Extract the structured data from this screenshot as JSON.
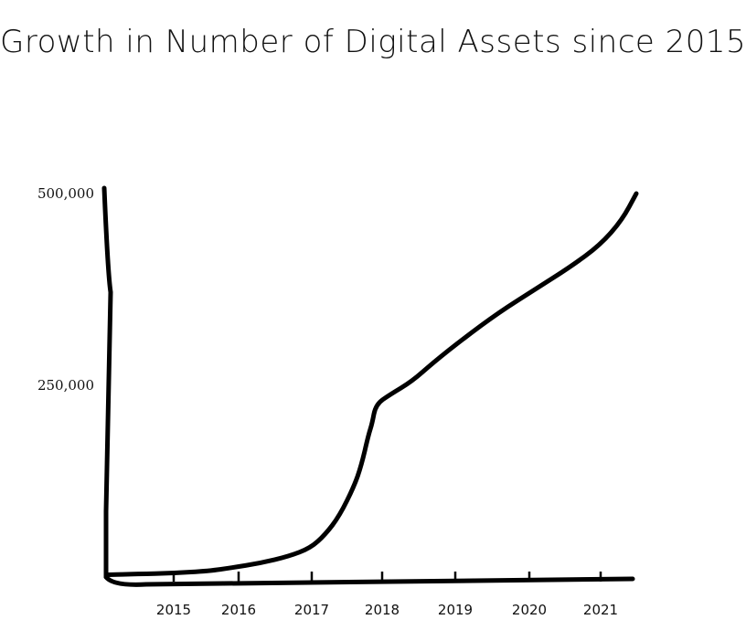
{
  "chart_data": {
    "type": "line",
    "title": "Growth in Number of Digital Assets since 2015",
    "xlabel": "",
    "ylabel": "",
    "x_ticks": [
      "2015",
      "2016",
      "2017",
      "2018",
      "2019",
      "2020",
      "2021"
    ],
    "y_ticks": [
      "500,000",
      "250,000"
    ],
    "ylim": [
      0,
      500000
    ],
    "xlim": [
      2014.1,
      2021.4
    ],
    "grid": false,
    "series": [
      {
        "x": [
          2014.1,
          2014.5,
          2015.0,
          2015.5,
          2015.8,
          2016.2,
          2016.6,
          2016.9,
          2017.1,
          2017.3,
          2017.5,
          2017.6,
          2017.7,
          2017.75,
          2017.8,
          2018.0,
          2018.3,
          2018.6,
          2019.0,
          2019.5,
          2020.0,
          2020.5,
          2020.9,
          2021.2,
          2021.4
        ],
        "values": [
          3000,
          4000,
          5000,
          8000,
          12000,
          18000,
          27000,
          38000,
          55000,
          80000,
          118000,
          145000,
          185000,
          200000,
          225000,
          238000,
          255000,
          280000,
          310000,
          345000,
          375000,
          405000,
          433000,
          465000,
          500000
        ]
      }
    ]
  }
}
